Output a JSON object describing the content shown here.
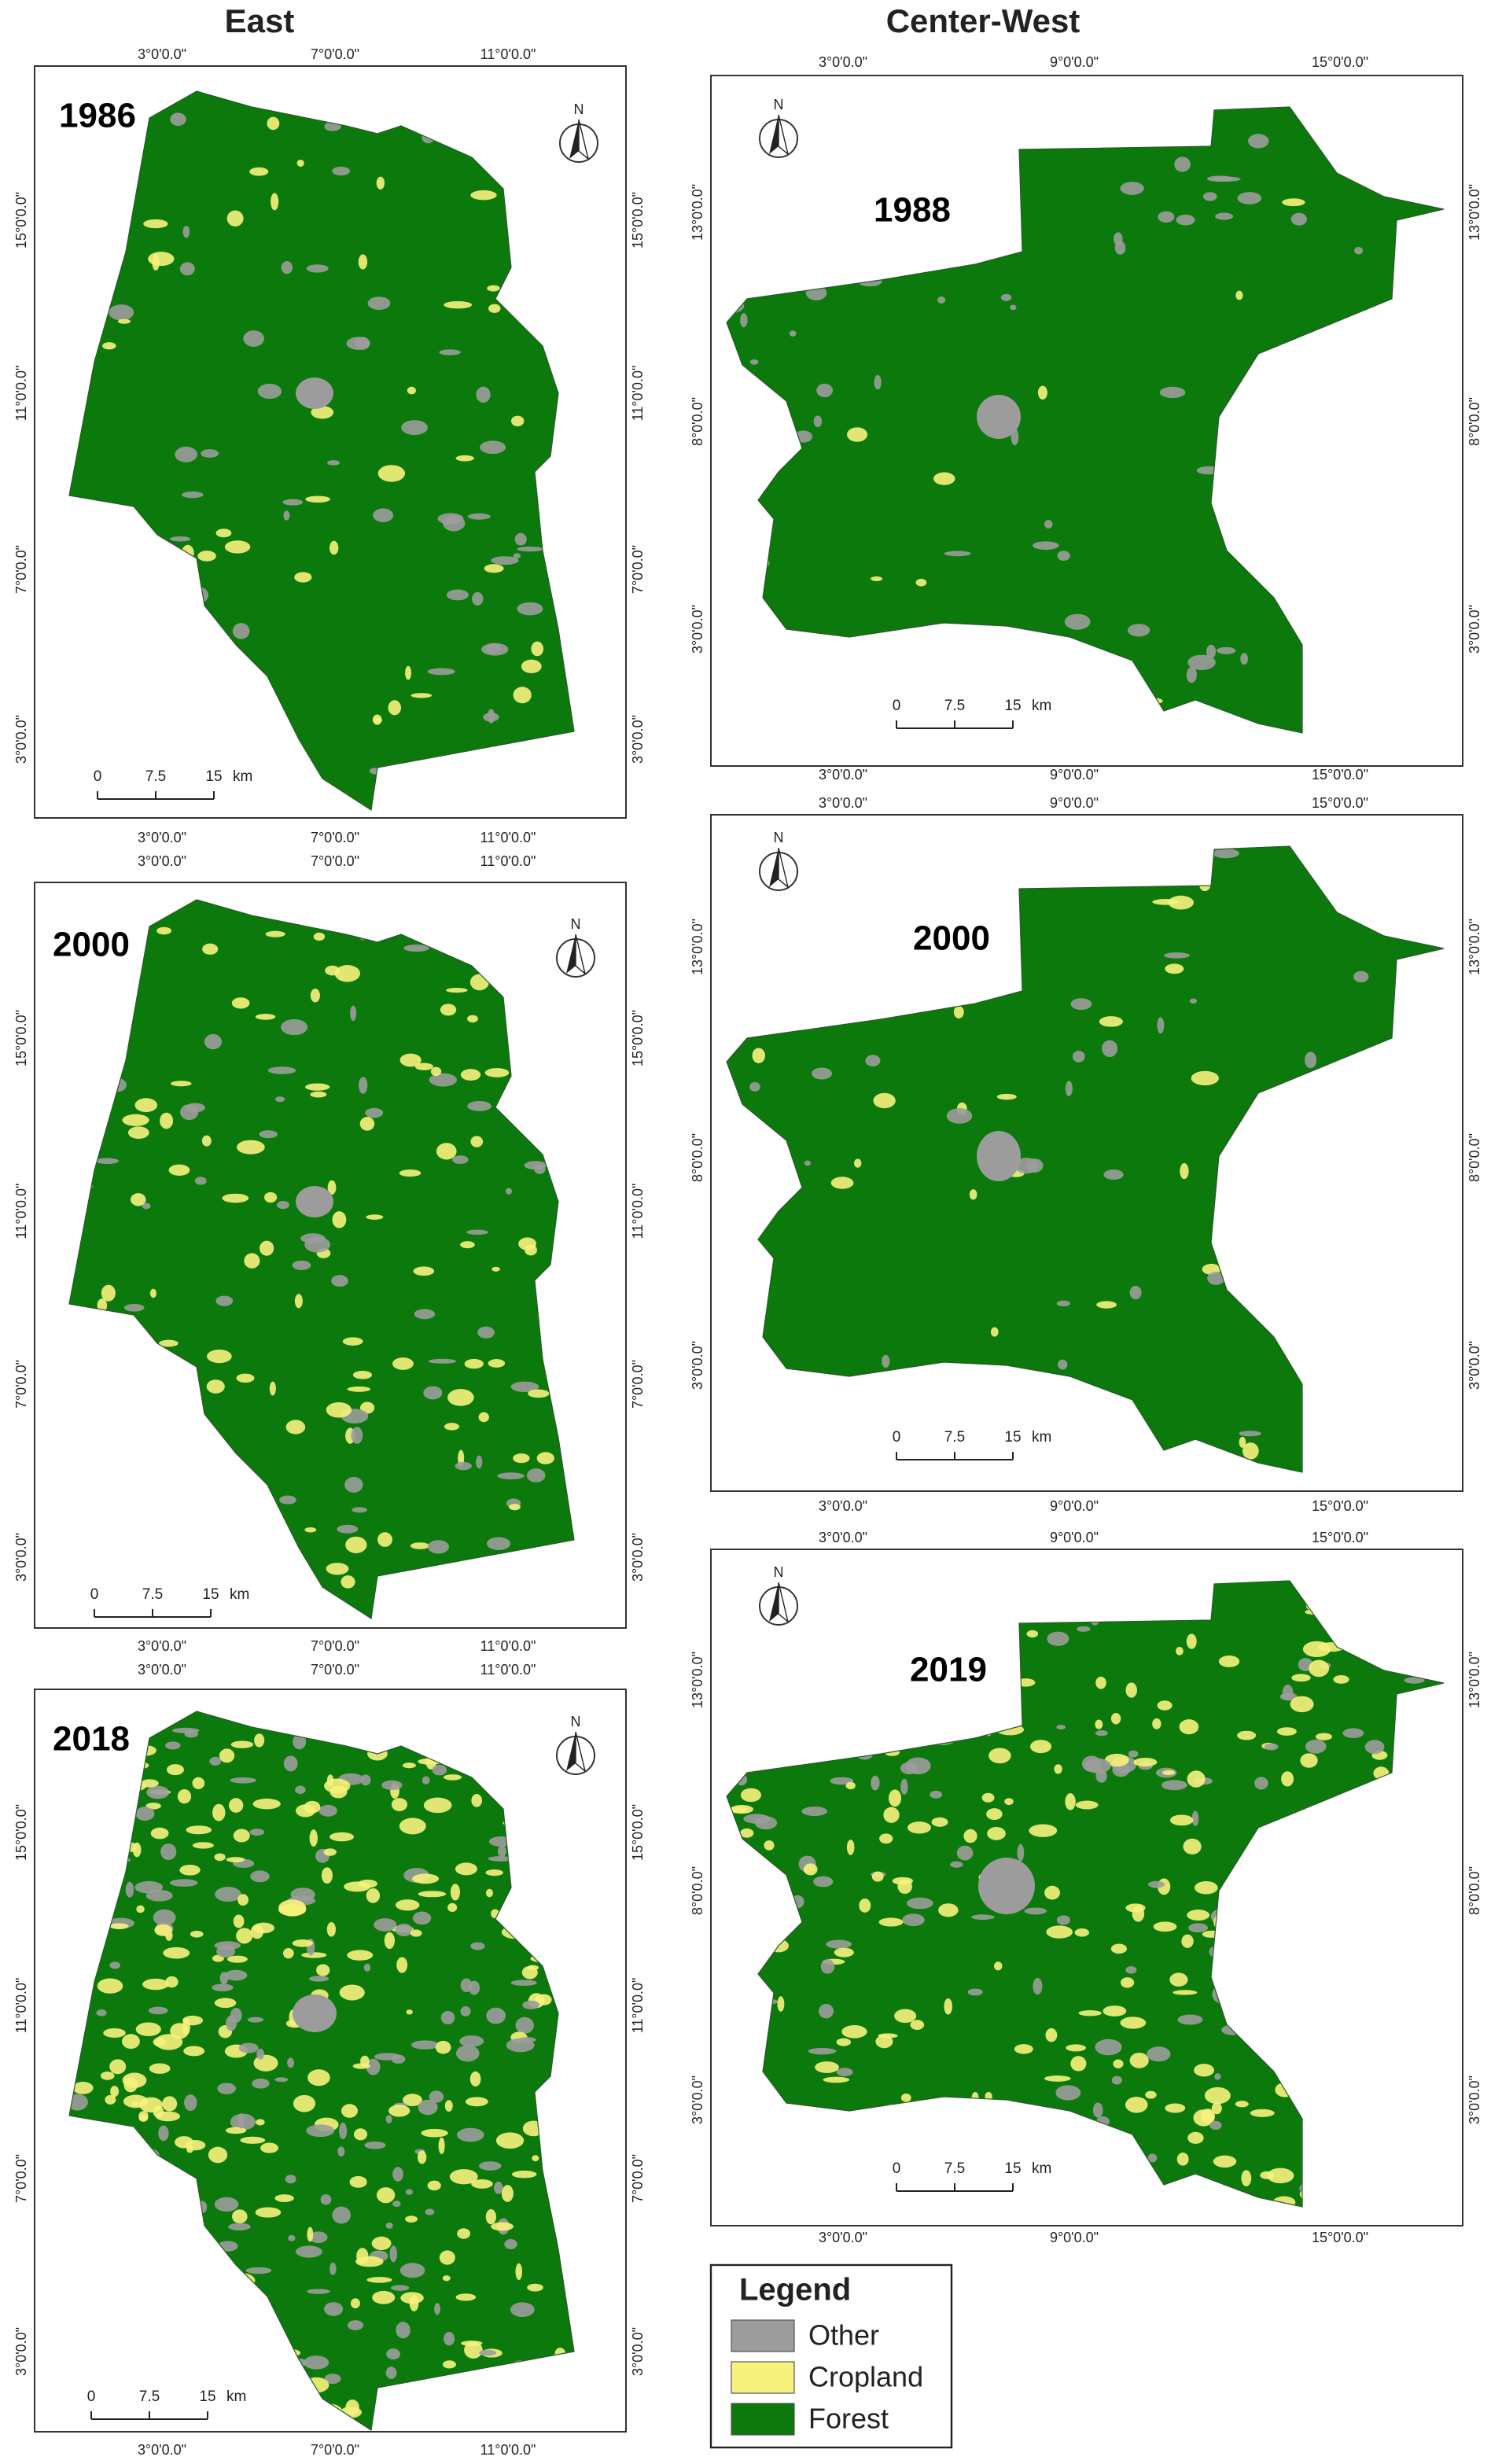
{
  "headers": [
    "East",
    "Center-West"
  ],
  "panels": [
    {
      "year": "1986",
      "north": "N",
      "top_labels": [
        "3°0'0.0\"",
        "7°0'0.0\"",
        "11°0'0.0\""
      ],
      "bottom_labels": [
        "3°0'0.0\"",
        "7°0'0.0\"",
        "11°0'0.0\""
      ],
      "left_labels": [
        "15°0'0.0\"",
        "11°0'0.0\"",
        "7°0'0.0\"",
        "3°0'0.0\""
      ],
      "right_labels": [
        "15°0'0.0\"",
        "11°0'0.0\"",
        "7°0'0.0\"",
        "3°0'0.0\""
      ],
      "scale_labels": [
        "0",
        "7.5",
        "15",
        "km"
      ]
    },
    {
      "year": "2000",
      "north": "N",
      "top_labels": [
        "3°0'0.0\"",
        "7°0'0.0\"",
        "11°0'0.0\""
      ],
      "bottom_labels": [
        "3°0'0.0\"",
        "7°0'0.0\"",
        "11°0'0.0\""
      ],
      "left_labels": [
        "15°0'0.0\"",
        "11°0'0.0\"",
        "7°0'0.0\"",
        "3°0'0.0\""
      ],
      "right_labels": [
        "15°0'0.0\"",
        "11°0'0.0\"",
        "7°0'0.0\"",
        "3°0'0.0\""
      ],
      "scale_labels": [
        "0",
        "7.5",
        "15",
        "km"
      ]
    },
    {
      "year": "2018",
      "north": "N",
      "top_labels": [
        "3°0'0.0\"",
        "7°0'0.0\"",
        "11°0'0.0\""
      ],
      "bottom_labels": [
        "3°0'0.0\"",
        "7°0'0.0\"",
        "11°0'0.0\""
      ],
      "left_labels": [
        "15°0'0.0\"",
        "11°0'0.0\"",
        "7°0'0.0\"",
        "3°0'0.0\""
      ],
      "right_labels": [
        "15°0'0.0\"",
        "11°0'0.0\"",
        "7°0'0.0\"",
        "3°0'0.0\""
      ],
      "scale_labels": [
        "0",
        "7.5",
        "15",
        "km"
      ]
    },
    {
      "year": "1988",
      "north": "N",
      "top_labels": [
        "3°0'0.0\"",
        "9°0'0.0\"",
        "15°0'0.0\""
      ],
      "bottom_labels": [
        "3°0'0.0\"",
        "9°0'0.0\"",
        "15°0'0.0\""
      ],
      "left_labels": [
        "13°0'0.0\"",
        "8°0'0.0\"",
        "3°0'0.0\""
      ],
      "right_labels": [
        "13°0'0.0\"",
        "8°0'0.0\"",
        "3°0'0.0\""
      ],
      "scale_labels": [
        "0",
        "7.5",
        "15",
        "km"
      ]
    },
    {
      "year": "2000",
      "north": "N",
      "top_labels": [
        "3°0'0.0\"",
        "9°0'0.0\"",
        "15°0'0.0\""
      ],
      "bottom_labels": [
        "3°0'0.0\"",
        "9°0'0.0\"",
        "15°0'0.0\""
      ],
      "left_labels": [
        "13°0'0.0\"",
        "8°0'0.0\"",
        "3°0'0.0\""
      ],
      "right_labels": [
        "13°0'0.0\"",
        "8°0'0.0\"",
        "3°0'0.0\""
      ],
      "scale_labels": [
        "0",
        "7.5",
        "15",
        "km"
      ]
    },
    {
      "year": "2019",
      "north": "N",
      "top_labels": [
        "3°0'0.0\"",
        "9°0'0.0\"",
        "15°0'0.0\""
      ],
      "bottom_labels": [
        "3°0'0.0\"",
        "9°0'0.0\"",
        "15°0'0.0\""
      ],
      "left_labels": [
        "13°0'0.0\"",
        "8°0'0.0\"",
        "3°0'0.0\""
      ],
      "right_labels": [
        "13°0'0.0\"",
        "8°0'0.0\"",
        "3°0'0.0\""
      ],
      "scale_labels": [
        "0",
        "7.5",
        "15",
        "km"
      ]
    }
  ],
  "legend": {
    "title": "Legend",
    "items": [
      {
        "label": "Other",
        "color": "#9c9c9c"
      },
      {
        "label": "Cropland",
        "color": "#f7f27c"
      },
      {
        "label": "Forest",
        "color": "#0b790b"
      }
    ]
  }
}
